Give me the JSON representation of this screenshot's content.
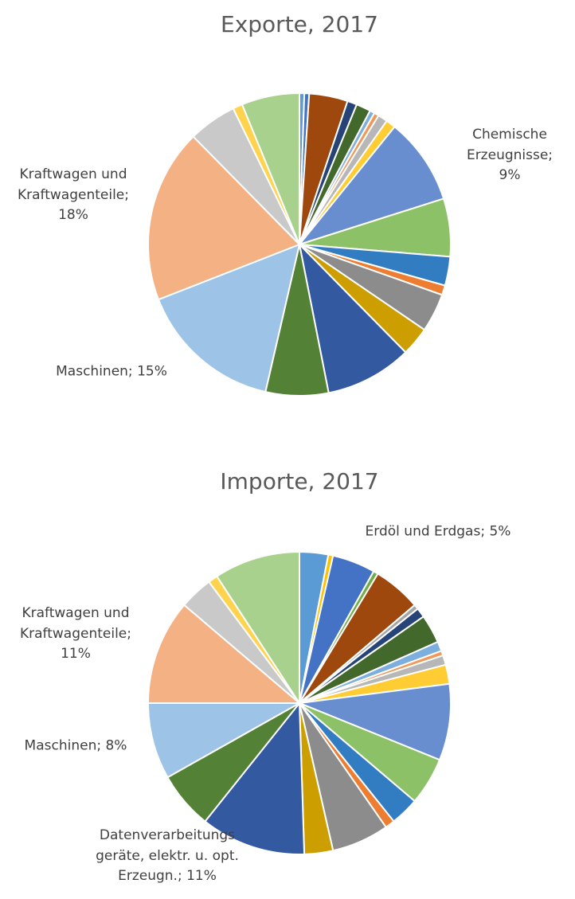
{
  "chart_data": [
    {
      "type": "pie",
      "title": "Exporte, 2017",
      "values": [
        0.5,
        0.5,
        4,
        1,
        1.5,
        0.5,
        0.5,
        1,
        1,
        9,
        6,
        3,
        1,
        4,
        3,
        9,
        6.5,
        15,
        18,
        5,
        1,
        6
      ],
      "value_labels": [
        null,
        null,
        null,
        null,
        null,
        null,
        null,
        null,
        null,
        "Chemische Erzeugnisse; 9%",
        null,
        null,
        null,
        null,
        null,
        null,
        null,
        "Maschinen; 15%",
        "Kraftwagen und Kraftwagenteile; 18%",
        null,
        null,
        null
      ],
      "colors": [
        "#5b9bd5",
        "#4472c4",
        "#9e480e",
        "#264478",
        "#43682b",
        "#7cafdd",
        "#f1975a",
        "#b7b7b7",
        "#ffcd33",
        "#698ed0",
        "#8cc168",
        "#327dc2",
        "#ed7d31",
        "#8c8c8c",
        "#cc9e00",
        "#335aa1",
        "#538135",
        "#9dc3e6",
        "#f4b183",
        "#c9c9c9",
        "#ffd34d",
        "#a9d18e"
      ]
    },
    {
      "type": "pie",
      "title": "Importe, 2017",
      "values": [
        3,
        0.5,
        4.5,
        0.5,
        5,
        0.5,
        1,
        3,
        1,
        0.5,
        1,
        2,
        8,
        5,
        3,
        1,
        6,
        3,
        11,
        6,
        8,
        11,
        3.5,
        1,
        9
      ],
      "value_labels": [
        null,
        null,
        null,
        null,
        "Erdöl und Erdgas; 5%",
        null,
        null,
        null,
        null,
        null,
        null,
        null,
        null,
        null,
        null,
        null,
        null,
        null,
        "Datenverarbeitungsgeräte, elektr. u. opt. Erzeugn.; 11%",
        null,
        "Maschinen; 8%",
        "Kraftwagen und Kraftwagenteile; 11%",
        null,
        null,
        null
      ],
      "colors": [
        "#5b9bd5",
        "#ffc000",
        "#4472c4",
        "#70ad47",
        "#9e480e",
        "#a5a5a5",
        "#264478",
        "#43682b",
        "#7cafdd",
        "#f1975a",
        "#b7b7b7",
        "#ffcd33",
        "#698ed0",
        "#8cc168",
        "#327dc2",
        "#ed7d31",
        "#8c8c8c",
        "#cc9e00",
        "#335aa1",
        "#538135",
        "#9dc3e6",
        "#f4b183",
        "#c9c9c9",
        "#ffd34d",
        "#a9d18e"
      ]
    }
  ]
}
